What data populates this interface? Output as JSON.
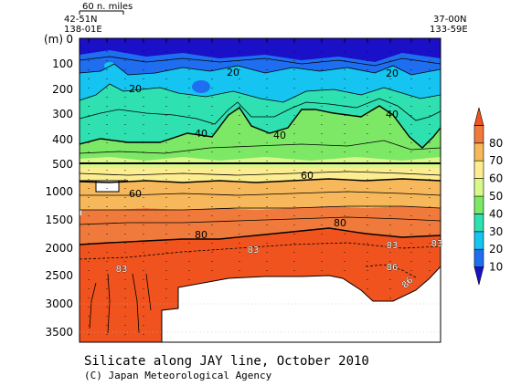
{
  "chart_data": {
    "type": "heatmap",
    "title": "Silicate along JAY line, October 2010",
    "credit": "(C) Japan Meteorological Agency",
    "scale_label": "60 n. miles",
    "left_station": {
      "lat": "42-51N",
      "lon": "138-01E"
    },
    "right_station": {
      "lat": "37-00N",
      "lon": "133-59E"
    },
    "ylabel": "(m)",
    "y_ticks_upper": [
      "0",
      "100",
      "200",
      "300",
      "400",
      "500"
    ],
    "y_ticks_lower": [
      "1000",
      "1500",
      "2000",
      "2500",
      "3000",
      "3500"
    ],
    "colorbar": {
      "levels": [
        10,
        20,
        30,
        40,
        50,
        60,
        70,
        80
      ],
      "colors": [
        "#1a10c8",
        "#1f6ef0",
        "#15c4f0",
        "#2fe0b0",
        "#7de865",
        "#d8f98a",
        "#fcee90",
        "#f6b85a",
        "#f07a3c",
        "#f1531e"
      ]
    },
    "contour_labels": [
      "20",
      "20",
      "20",
      "40",
      "40",
      "40",
      "60",
      "60",
      "80",
      "80",
      "83",
      "83",
      "83",
      "83",
      "86",
      "86"
    ]
  }
}
